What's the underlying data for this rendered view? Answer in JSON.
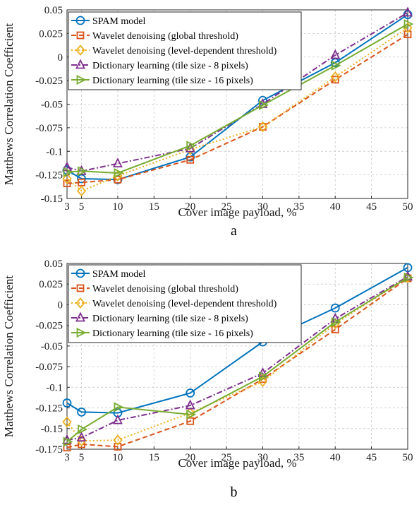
{
  "chart_data": [
    {
      "type": "line",
      "panel_label": "a",
      "xlabel": "Cover image payload, %",
      "ylabel": "Matthews Correlation Coefficient",
      "xlim": [
        3,
        50
      ],
      "ylim": [
        -0.15,
        0.05
      ],
      "x_ticks": [
        3,
        5,
        10,
        15,
        20,
        25,
        30,
        35,
        40,
        45,
        50
      ],
      "y_ticks": [
        -0.15,
        -0.125,
        -0.1,
        -0.075,
        -0.05,
        -0.025,
        0,
        0.025,
        0.05
      ],
      "y_tick_labels": [
        "-0.15",
        "-0.125",
        "-0.1",
        "-0.075",
        "-0.05",
        "-0.025",
        "0",
        "0.025",
        "0.05"
      ],
      "grid": true,
      "legend_position": "top-left",
      "x": [
        3,
        5,
        10,
        20,
        30,
        40,
        50
      ],
      "series": [
        {
          "name": "SPAM model",
          "color": "#0072BD",
          "dash": "solid",
          "marker": "circle",
          "values": [
            -0.12,
            -0.129,
            -0.13,
            -0.106,
            -0.046,
            -0.006,
            0.045
          ]
        },
        {
          "name": "Wavelet denoising (global threshold)",
          "color": "#D95319",
          "dash": "dashed",
          "marker": "square",
          "values": [
            -0.134,
            -0.133,
            -0.13,
            -0.109,
            -0.074,
            -0.024,
            0.024
          ]
        },
        {
          "name": "Wavelet denoising (level-dependent threshold)",
          "color": "#EDB120",
          "dash": "dotted",
          "marker": "diamond",
          "values": [
            -0.129,
            -0.142,
            -0.126,
            -0.098,
            -0.074,
            -0.021,
            0.031
          ]
        },
        {
          "name": "Dictionary learning (tile size - 8 pixels)",
          "color": "#7E2F8E",
          "dash": "dashdot",
          "marker": "triangle-up",
          "values": [
            -0.117,
            -0.121,
            -0.113,
            -0.097,
            -0.05,
            0.002,
            0.047
          ]
        },
        {
          "name": "Dictionary learning (tile size - 16 pixels)",
          "color": "#77AC30",
          "dash": "solid",
          "marker": "triangle-right",
          "values": [
            -0.122,
            -0.121,
            -0.123,
            -0.094,
            -0.051,
            -0.009,
            0.035
          ]
        }
      ]
    },
    {
      "type": "line",
      "panel_label": "b",
      "xlabel": "Cover image payload, %",
      "ylabel": "Matthews Correlation Coefficient",
      "xlim": [
        3,
        50
      ],
      "ylim": [
        -0.175,
        0.05
      ],
      "x_ticks": [
        3,
        5,
        10,
        15,
        20,
        25,
        30,
        35,
        40,
        45,
        50
      ],
      "y_ticks": [
        -0.175,
        -0.15,
        -0.125,
        -0.1,
        -0.075,
        -0.05,
        -0.025,
        0,
        0.025,
        0.05
      ],
      "y_tick_labels": [
        "-0.175",
        "-0.15",
        "-0.125",
        "-0.1",
        "-0.075",
        "-0.05",
        "-0.025",
        "0",
        "0.025",
        "0.05"
      ],
      "grid": true,
      "legend_position": "top-left",
      "x": [
        3,
        5,
        10,
        20,
        30,
        40,
        50
      ],
      "series": [
        {
          "name": "SPAM model",
          "color": "#0072BD",
          "dash": "solid",
          "marker": "circle",
          "values": [
            -0.119,
            -0.13,
            -0.131,
            -0.107,
            -0.045,
            -0.004,
            0.045
          ]
        },
        {
          "name": "Wavelet denoising (global threshold)",
          "color": "#D95319",
          "dash": "dashed",
          "marker": "square",
          "values": [
            -0.173,
            -0.169,
            -0.172,
            -0.141,
            -0.09,
            -0.03,
            0.032
          ]
        },
        {
          "name": "Wavelet denoising (level-dependent threshold)",
          "color": "#EDB120",
          "dash": "dotted",
          "marker": "diamond",
          "values": [
            -0.142,
            -0.165,
            -0.164,
            -0.131,
            -0.093,
            -0.023,
            0.033
          ]
        },
        {
          "name": "Dictionary learning (tile size - 8 pixels)",
          "color": "#7E2F8E",
          "dash": "dashdot",
          "marker": "triangle-up",
          "values": [
            -0.164,
            -0.161,
            -0.14,
            -0.122,
            -0.083,
            -0.017,
            0.034
          ]
        },
        {
          "name": "Dictionary learning (tile size - 16 pixels)",
          "color": "#77AC30",
          "dash": "solid",
          "marker": "triangle-right",
          "values": [
            -0.166,
            -0.151,
            -0.124,
            -0.133,
            -0.087,
            -0.021,
            0.033
          ]
        }
      ]
    }
  ]
}
